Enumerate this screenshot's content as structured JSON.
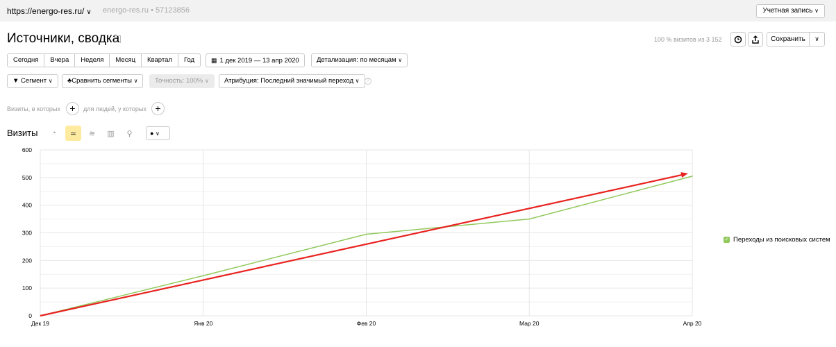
{
  "topbar": {
    "site_url": "https://energo-res.ru/",
    "site_meta": "energo-res.ru • 57123856",
    "account_label": "Учетная запись"
  },
  "header": {
    "title": "Источники, сводка",
    "visits_info": "100 % визитов из 3 152",
    "save_label": "Сохранить"
  },
  "periods": [
    "Сегодня",
    "Вчера",
    "Неделя",
    "Месяц",
    "Квартал",
    "Год"
  ],
  "date_range": "1 дек 2019 — 13 апр 2020",
  "detail": "Детализация: по месяцам",
  "segment": "Сегмент",
  "compare": "Сравнить сегменты",
  "accuracy": "Точность: 100%",
  "attribution": "Атрибуция: Последний значимый переход",
  "filters": {
    "visits_label": "Визиты, в которых",
    "people_label": "для людей, у которых"
  },
  "section": {
    "title": "Визиты"
  },
  "chart_data": {
    "type": "line",
    "categories": [
      "Дек 19",
      "Янв 20",
      "Фев 20",
      "Мар 20",
      "Апр 20"
    ],
    "yticks": [
      0,
      100,
      200,
      300,
      400,
      500,
      600
    ],
    "ylim": [
      0,
      600
    ],
    "series": [
      {
        "name": "Переходы из поисковых систем",
        "values": [
          0,
          145,
          295,
          350,
          505
        ],
        "color": "#91c95c"
      }
    ],
    "annotation": {
      "type": "arrow",
      "from": [
        0,
        0
      ],
      "to": [
        4,
        515
      ],
      "color": "#e8231f"
    },
    "legend_position": "right"
  }
}
